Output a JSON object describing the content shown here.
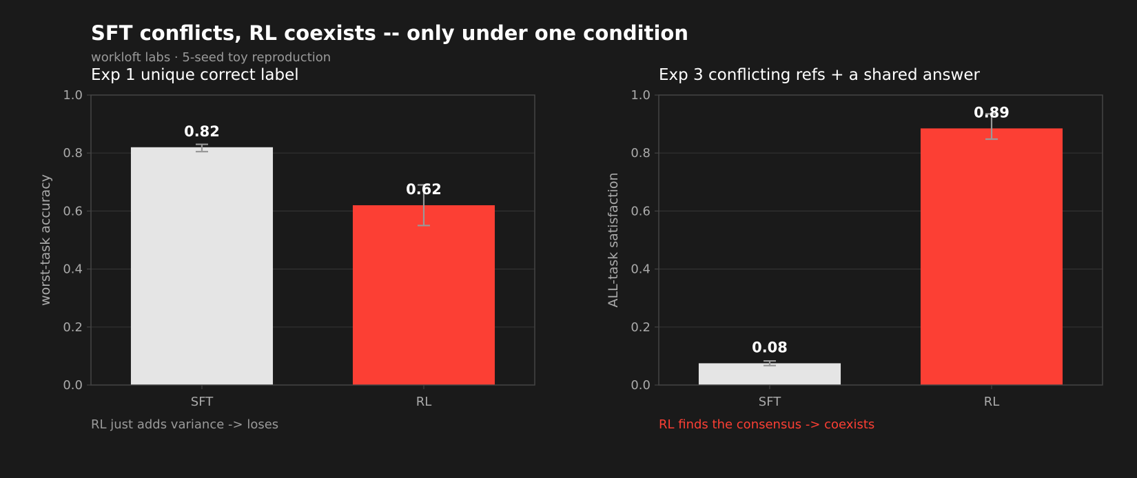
{
  "title": "SFT conflicts, RL coexists -- only under one condition",
  "subtitle": "workloft labs  ·  5-seed toy reproduction",
  "colors": {
    "background": "#1a1a1a",
    "sft": "#e5e5e5",
    "rl": "#fc3f34",
    "grid": "#333333",
    "axis": "#444444",
    "errorbar": "#999999",
    "note_muted": "#9a9a9a",
    "note_accent": "#fc3f34"
  },
  "chart_data": [
    {
      "type": "bar",
      "title": "Exp 1  unique correct label",
      "ylabel": "worst-task accuracy",
      "categories": [
        "SFT",
        "RL"
      ],
      "values": [
        0.82,
        0.62
      ],
      "errors_low": [
        0.805,
        0.55
      ],
      "errors_high": [
        0.83,
        0.69
      ],
      "value_labels": [
        "0.82",
        "0.62"
      ],
      "ylim": [
        0,
        1.0
      ],
      "yticks": [
        "0.0",
        "0.2",
        "0.4",
        "0.6",
        "0.8",
        "1.0"
      ],
      "grid": true,
      "note": "RL just adds variance -> loses"
    },
    {
      "type": "bar",
      "title": "Exp 3  conflicting refs + a shared answer",
      "ylabel": "ALL-task satisfaction",
      "categories": [
        "SFT",
        "RL"
      ],
      "values": [
        0.075,
        0.885
      ],
      "errors_low": [
        0.067,
        0.848
      ],
      "errors_high": [
        0.083,
        0.935
      ],
      "value_labels": [
        "0.08",
        "0.89"
      ],
      "ylim": [
        0,
        1.0
      ],
      "yticks": [
        "0.0",
        "0.2",
        "0.4",
        "0.6",
        "0.8",
        "1.0"
      ],
      "grid": true,
      "note": "RL finds the consensus -> coexists"
    }
  ]
}
